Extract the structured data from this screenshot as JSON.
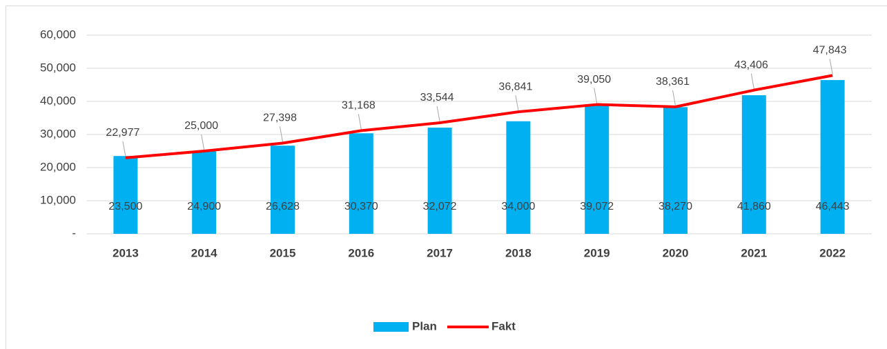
{
  "chart_data": {
    "type": "bar",
    "categories": [
      "2013",
      "2014",
      "2015",
      "2016",
      "2017",
      "2018",
      "2019",
      "2020",
      "2021",
      "2022"
    ],
    "series": [
      {
        "name": "Plan",
        "type": "bar",
        "color": "#00b0f0",
        "values": [
          23500,
          24900,
          26628,
          30370,
          32072,
          34000,
          39072,
          38270,
          41860,
          46443
        ],
        "value_labels": [
          "23,500",
          "24,900",
          "26,628",
          "30,370",
          "32,072",
          "34,000",
          "39,072",
          "38,270",
          "41,860",
          "46,443"
        ]
      },
      {
        "name": "Fakt",
        "type": "line",
        "color": "#ff0000",
        "values": [
          22977,
          25000,
          27398,
          31168,
          33544,
          36841,
          39050,
          38361,
          43406,
          47843
        ],
        "value_labels": [
          "22,977",
          "25,000",
          "27,398",
          "31,168",
          "33,544",
          "36,841",
          "39,050",
          "38,361",
          "43,406",
          "47,843"
        ]
      }
    ],
    "ylim": [
      0,
      60000
    ],
    "yticks": [
      {
        "value": 0,
        "label": "-"
      },
      {
        "value": 10000,
        "label": "10,000"
      },
      {
        "value": 20000,
        "label": "20,000"
      },
      {
        "value": 30000,
        "label": "30,000"
      },
      {
        "value": 40000,
        "label": "40,000"
      },
      {
        "value": 50000,
        "label": "50,000"
      },
      {
        "value": 60000,
        "label": "60,000"
      }
    ],
    "grid": true,
    "legend": "bottom"
  }
}
